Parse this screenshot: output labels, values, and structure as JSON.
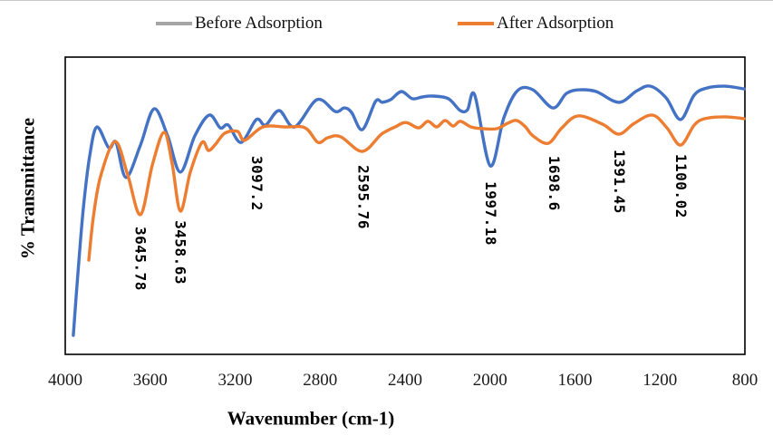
{
  "legend": {
    "items": [
      {
        "label": "Before Adsorption",
        "swatch_color": "#A5A5A5"
      },
      {
        "label": "After Adsorption",
        "swatch_color": "#ED7D31"
      }
    ]
  },
  "chart_data": {
    "type": "line",
    "title": "",
    "xlabel": "Wavenumber (cm-1)",
    "ylabel": "% Transmittance",
    "x_axis": {
      "min": 800,
      "max": 4000,
      "reversed": true,
      "ticks": [
        4000,
        3600,
        3200,
        2800,
        2400,
        2000,
        1600,
        1200,
        800
      ]
    },
    "y_axis": {
      "min": 0,
      "max": 100,
      "tick_labels_visible": false
    },
    "grid": false,
    "legend_position": "top",
    "series": [
      {
        "name": "Before Adsorption",
        "color": "#4472C4",
        "legend_swatch": "#A5A5A5",
        "points": [
          [
            3962,
            6.4
          ],
          [
            3940,
            27.7
          ],
          [
            3915,
            49.0
          ],
          [
            3885,
            66.8
          ],
          [
            3851,
            76.5
          ],
          [
            3795,
            69.5
          ],
          [
            3761,
            71.3
          ],
          [
            3714,
            59.5
          ],
          [
            3646,
            70.4
          ],
          [
            3582,
            82.6
          ],
          [
            3518,
            73.5
          ],
          [
            3458,
            61.3
          ],
          [
            3390,
            73.5
          ],
          [
            3322,
            80.5
          ],
          [
            3270,
            76.2
          ],
          [
            3232,
            77.1
          ],
          [
            3172,
            71.3
          ],
          [
            3100,
            79.0
          ],
          [
            3057,
            77.1
          ],
          [
            2993,
            82.0
          ],
          [
            2920,
            76.5
          ],
          [
            2814,
            85.7
          ],
          [
            2729,
            81.7
          ],
          [
            2686,
            82.9
          ],
          [
            2652,
            81.4
          ],
          [
            2601,
            75.6
          ],
          [
            2539,
            85.1
          ],
          [
            2507,
            84.8
          ],
          [
            2468,
            85.7
          ],
          [
            2417,
            88.4
          ],
          [
            2366,
            86.0
          ],
          [
            2319,
            86.6
          ],
          [
            2268,
            86.9
          ],
          [
            2196,
            86.0
          ],
          [
            2140,
            82.0
          ],
          [
            2106,
            82.3
          ],
          [
            2072,
            87.2
          ],
          [
            1999,
            63.4
          ],
          [
            1935,
            79.6
          ],
          [
            1871,
            88.7
          ],
          [
            1798,
            89.0
          ],
          [
            1704,
            82.9
          ],
          [
            1640,
            87.8
          ],
          [
            1577,
            89.0
          ],
          [
            1500,
            88.4
          ],
          [
            1393,
            84.8
          ],
          [
            1308,
            88.7
          ],
          [
            1244,
            90.2
          ],
          [
            1171,
            86.3
          ],
          [
            1103,
            79.0
          ],
          [
            1039,
            87.2
          ],
          [
            979,
            89.6
          ],
          [
            894,
            90.2
          ],
          [
            804,
            89.3
          ]
        ]
      },
      {
        "name": "After Adsorption",
        "color": "#ED7D31",
        "legend_swatch": "#ED7D31",
        "points": [
          [
            3889,
            31.7
          ],
          [
            3868,
            46.0
          ],
          [
            3834,
            59.8
          ],
          [
            3765,
            71.6
          ],
          [
            3706,
            60.4
          ],
          [
            3646,
            47.0
          ],
          [
            3590,
            63.7
          ],
          [
            3535,
            74.7
          ],
          [
            3497,
            64.3
          ],
          [
            3458,
            48.2
          ],
          [
            3411,
            61.3
          ],
          [
            3356,
            71.3
          ],
          [
            3326,
            68.6
          ],
          [
            3292,
            70.7
          ],
          [
            3249,
            74.4
          ],
          [
            3189,
            75.0
          ],
          [
            3155,
            72.0
          ],
          [
            3070,
            76.5
          ],
          [
            2963,
            76.5
          ],
          [
            2870,
            76.2
          ],
          [
            2810,
            71.3
          ],
          [
            2763,
            72.9
          ],
          [
            2703,
            73.2
          ],
          [
            2601,
            68.3
          ],
          [
            2511,
            74.1
          ],
          [
            2447,
            76.5
          ],
          [
            2396,
            78.0
          ],
          [
            2336,
            76.2
          ],
          [
            2293,
            78.4
          ],
          [
            2251,
            76.5
          ],
          [
            2212,
            78.7
          ],
          [
            2174,
            76.8
          ],
          [
            2140,
            78.4
          ],
          [
            2089,
            76.5
          ],
          [
            2033,
            75.9
          ],
          [
            1969,
            75.9
          ],
          [
            1918,
            77.7
          ],
          [
            1875,
            78.7
          ],
          [
            1833,
            76.5
          ],
          [
            1798,
            73.5
          ],
          [
            1726,
            71.0
          ],
          [
            1662,
            76.2
          ],
          [
            1585,
            80.2
          ],
          [
            1470,
            77.4
          ],
          [
            1393,
            74.1
          ],
          [
            1321,
            77.7
          ],
          [
            1235,
            80.5
          ],
          [
            1167,
            76.2
          ],
          [
            1103,
            70.4
          ],
          [
            1039,
            77.1
          ],
          [
            988,
            79.3
          ],
          [
            894,
            79.9
          ],
          [
            804,
            79.3
          ]
        ]
      }
    ],
    "peak_labels": [
      {
        "text": "3645.78",
        "wavenumber": 3645.78,
        "top_transmittance": 43.0
      },
      {
        "text": "3458.63",
        "wavenumber": 3458.63,
        "top_transmittance": 45.1
      },
      {
        "text": "3097.2",
        "wavenumber": 3097.2,
        "top_transmittance": 66.8
      },
      {
        "text": "2595.76",
        "wavenumber": 2595.76,
        "top_transmittance": 63.7
      },
      {
        "text": "1997.18",
        "wavenumber": 1997.18,
        "top_transmittance": 58.2
      },
      {
        "text": "1698.6",
        "wavenumber": 1698.6,
        "top_transmittance": 66.8
      },
      {
        "text": "1391.45",
        "wavenumber": 1391.45,
        "top_transmittance": 68.9
      },
      {
        "text": "1100.02",
        "wavenumber": 1100.02,
        "top_transmittance": 67.4
      }
    ]
  }
}
